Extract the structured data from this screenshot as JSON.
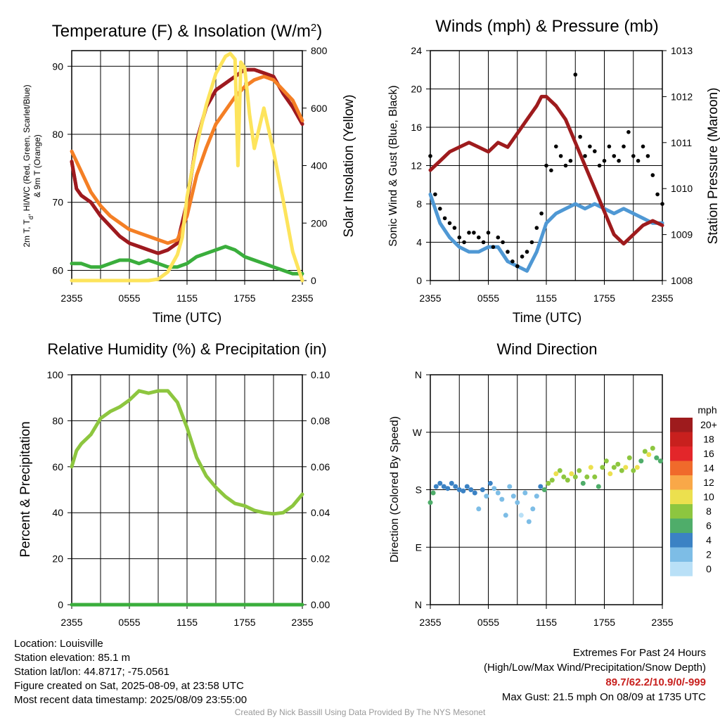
{
  "chart_data": [
    {
      "type": "line",
      "title": "Temperature (F) & Insolation (W/m",
      "title_sup": "2",
      "title_end": ")",
      "xlabel": "Time (UTC)",
      "ylabel_left_line1": "2m T, T",
      "ylabel_left_sub": "d",
      "ylabel_left_line1_end": ", HI/WC (Red, Green, Scarlet/Blue)",
      "ylabel_left_line2": "& 9m T (Orange)",
      "ylabel_right": "Solar Insolation (Yellow)",
      "x_ticks": [
        "2355",
        "0555",
        "1155",
        "1755",
        "2355"
      ],
      "ylim_left": [
        58.5,
        92.3
      ],
      "ylim_right": [
        0,
        800
      ],
      "y_ticks_left": [
        "60",
        "70",
        "80",
        "90"
      ],
      "y_ticks_right": [
        "0",
        "200",
        "400",
        "600",
        "800"
      ],
      "grid": true,
      "series": [
        {
          "color": "#e3262a",
          "x_hours": [
            0,
            0.5,
            1,
            2,
            3,
            4,
            5,
            6,
            7,
            8,
            9,
            10,
            11,
            12,
            13,
            14,
            15,
            16,
            16.5,
            17,
            18,
            19,
            20,
            21,
            22,
            23,
            24
          ],
          "values": [
            76,
            72,
            71,
            70,
            68,
            66.5,
            65,
            64,
            63.5,
            63,
            62.5,
            63,
            64,
            70,
            79,
            84,
            86.5,
            87.5,
            88,
            88.5,
            89.5,
            89.5,
            89,
            88.5,
            86,
            84,
            81.5
          ]
        },
        {
          "color": "#9d1a1f",
          "x_hours": [
            0,
            0.5,
            1,
            2,
            3,
            4,
            5,
            6,
            7,
            8,
            9,
            10,
            11,
            12,
            13,
            14,
            15,
            16,
            16.5,
            17,
            18,
            19,
            20,
            21,
            22,
            23,
            24
          ],
          "values": [
            76,
            72,
            71,
            70,
            68,
            66.5,
            65,
            64,
            63.5,
            63,
            62.5,
            63,
            64,
            70,
            79,
            84,
            86.5,
            87.5,
            88,
            88.5,
            89.5,
            89.5,
            89,
            88.5,
            86,
            84,
            81.5
          ]
        },
        {
          "color": "#f47f25",
          "x_hours": [
            0,
            1,
            2,
            3,
            4,
            5,
            6,
            7,
            8,
            9,
            10,
            11,
            12,
            13,
            14,
            15,
            16,
            17,
            18,
            19,
            20,
            21,
            22,
            23,
            24
          ],
          "values": [
            77.5,
            74.5,
            71.5,
            69.5,
            68,
            67,
            66,
            65.5,
            65,
            64.5,
            64,
            64.5,
            68,
            74,
            78,
            81.5,
            83.5,
            85.5,
            87,
            88,
            88.5,
            88,
            86.5,
            85,
            82
          ]
        },
        {
          "color": "#3aae3c",
          "x_hours": [
            0,
            1,
            2,
            3,
            4,
            5,
            6,
            7,
            8,
            9,
            10,
            11,
            12,
            13,
            14,
            15,
            16,
            17,
            18,
            19,
            20,
            21,
            22,
            23,
            24
          ],
          "values": [
            61,
            61,
            60.5,
            60.5,
            61,
            61.5,
            61.5,
            61,
            61.5,
            61,
            60.5,
            60.5,
            61,
            62,
            62.5,
            63,
            63.5,
            63,
            62,
            61.5,
            61,
            60.5,
            60,
            59.5,
            59.5
          ]
        },
        {
          "axis": "right",
          "color": "#fde45c",
          "x_hours": [
            0,
            8,
            9,
            10,
            11,
            11.5,
            12,
            13,
            14,
            15,
            16,
            16.5,
            17,
            17.3,
            17.6,
            18,
            18.5,
            19,
            20,
            21,
            22,
            23,
            24
          ],
          "values": [
            0,
            0,
            5,
            30,
            90,
            150,
            290,
            470,
            610,
            720,
            780,
            790,
            770,
            400,
            760,
            740,
            580,
            460,
            600,
            450,
            280,
            100,
            0
          ]
        }
      ]
    },
    {
      "type": "line",
      "title": "Winds (mph) & Pressure (mb)",
      "xlabel": "Time (UTC)",
      "ylabel_left": "Sonic Wind & Gust (Blue, Black)",
      "ylabel_right": "Station Pressure (Maroon)",
      "x_ticks": [
        "2355",
        "0555",
        "1155",
        "1755",
        "2355"
      ],
      "ylim_left": [
        0,
        24
      ],
      "ylim_right": [
        1008,
        1013
      ],
      "y_ticks_left": [
        "0",
        "4",
        "8",
        "12",
        "16",
        "20",
        "24"
      ],
      "y_ticks_right": [
        "1008",
        "1009",
        "1010",
        "1011",
        "1012",
        "1013"
      ],
      "grid": true,
      "series": [
        {
          "color": "#4f98d4",
          "x_hours": [
            0,
            1,
            2,
            3,
            4,
            5,
            6,
            7,
            8,
            9,
            10,
            11,
            12,
            13,
            14,
            15,
            16,
            17,
            18,
            19,
            20,
            21,
            22,
            23,
            24
          ],
          "values": [
            9,
            6,
            4.5,
            3.5,
            3,
            3,
            3.5,
            3.5,
            2,
            1.5,
            1,
            3,
            6,
            7,
            7.5,
            8,
            7.5,
            8,
            7.5,
            7,
            7.5,
            7,
            6.5,
            6,
            6
          ]
        },
        {
          "color": "#9e1b1d",
          "axis": "right",
          "x_hours": [
            0,
            1,
            2,
            3,
            4,
            5,
            6,
            7,
            8,
            9,
            10,
            11,
            11.5,
            12,
            13,
            14,
            15,
            16,
            17,
            18,
            19,
            20,
            21,
            22,
            23,
            24
          ],
          "values": [
            1010.4,
            1010.6,
            1010.8,
            1010.9,
            1011.0,
            1010.9,
            1010.8,
            1011.0,
            1010.9,
            1011.2,
            1011.5,
            1011.8,
            1012.0,
            1012.0,
            1011.8,
            1011.5,
            1011.0,
            1010.5,
            1010.0,
            1009.5,
            1009.0,
            1008.8,
            1009.0,
            1009.2,
            1009.3,
            1009.2
          ]
        }
      ],
      "gust_points": {
        "color": "#000000",
        "x_hours": [
          0,
          0.5,
          1,
          1.5,
          2,
          2.5,
          3,
          3.5,
          4,
          4.5,
          5,
          5.5,
          6,
          6.5,
          7,
          7.5,
          8,
          8.5,
          9,
          9.5,
          10,
          10.5,
          11,
          11.5,
          12,
          12.5,
          13,
          13.5,
          14,
          14.5,
          15,
          15.5,
          16,
          16.5,
          17,
          17.5,
          18,
          18.5,
          19,
          19.5,
          20,
          20.5,
          21,
          21.5,
          22,
          22.5,
          23,
          23.5,
          24
        ],
        "values": [
          13,
          9,
          7.5,
          6.5,
          6,
          5.5,
          4.5,
          4,
          5,
          5,
          4.5,
          4,
          5,
          3.5,
          4.5,
          4,
          3,
          2,
          1.5,
          2.5,
          3,
          4,
          5.5,
          7,
          12,
          11.5,
          14,
          13,
          12,
          12.5,
          21.5,
          15,
          13,
          14,
          13.5,
          12,
          12.5,
          14,
          13,
          12.5,
          14,
          15.5,
          13,
          12.5,
          14,
          13,
          11,
          9,
          8
        ]
      }
    },
    {
      "type": "line",
      "title": "Relative Humidity (%) & Precipitation (in)",
      "ylabel_left": "Percent & Precipitation",
      "x_ticks": [
        "2355",
        "0555",
        "1155",
        "1755",
        "2355"
      ],
      "ylim_left": [
        0,
        100
      ],
      "ylim_right": [
        0,
        0.1
      ],
      "y_ticks_left": [
        "0",
        "20",
        "40",
        "60",
        "80",
        "100"
      ],
      "y_ticks_right": [
        "0.00",
        "0.02",
        "0.04",
        "0.06",
        "0.08",
        "0.10"
      ],
      "grid": true,
      "series": [
        {
          "color": "#8dc63f",
          "x_hours": [
            0,
            0.5,
            1,
            2,
            3,
            4,
            5,
            6,
            7,
            8,
            9,
            10,
            11,
            12,
            13,
            14,
            15,
            16,
            17,
            18,
            19,
            20,
            21,
            22,
            23,
            24
          ],
          "values": [
            60,
            67,
            70,
            74,
            81,
            84,
            86,
            89,
            93,
            92,
            93,
            93,
            88,
            77,
            64,
            56,
            51,
            47,
            44,
            43,
            41,
            40,
            39.5,
            40,
            43,
            48
          ]
        },
        {
          "color": "#3aae3c",
          "axis": "right",
          "x_hours": [
            0,
            24
          ],
          "values": [
            0,
            0
          ]
        }
      ]
    },
    {
      "type": "scatter",
      "title": "Wind Direction",
      "ylabel_left": "Direction (Colored By Speed)",
      "x_ticks": [
        "2355",
        "0555",
        "1155",
        "1755",
        "2355"
      ],
      "y_ticks_left": [
        "N",
        "E",
        "S",
        "W",
        "N"
      ],
      "ylim_left": [
        0,
        360
      ],
      "grid": true,
      "colorbar": {
        "label": "mph",
        "ticks": [
          "20+",
          "18",
          "16",
          "14",
          "12",
          "10",
          "8",
          "6",
          "4",
          "2",
          "0"
        ],
        "colors": [
          "#9e1b1d",
          "#c8201e",
          "#e3262a",
          "#f06a2b",
          "#f9a848",
          "#ece04e",
          "#8dc63f",
          "#4fad6a",
          "#3b82c4",
          "#7dbde6",
          "#b9e0f7"
        ]
      },
      "points": {
        "x_hours": [
          0,
          0.3,
          0.6,
          1,
          1.4,
          1.8,
          2.2,
          2.6,
          3,
          3.4,
          3.8,
          4.2,
          4.6,
          5,
          5.4,
          5.8,
          6.2,
          6.6,
          7,
          7.4,
          7.8,
          8.2,
          8.6,
          9,
          9.4,
          9.8,
          10.2,
          10.6,
          11,
          11.4,
          11.8,
          12.2,
          12.6,
          13,
          13.4,
          13.8,
          14.2,
          14.6,
          15,
          15.4,
          15.8,
          16.2,
          16.6,
          17,
          17.4,
          17.8,
          18.2,
          18.6,
          19,
          19.4,
          19.8,
          20.2,
          20.6,
          21,
          21.4,
          21.8,
          22.2,
          22.6,
          23,
          23.4,
          23.8
        ],
        "values": [
          160,
          175,
          185,
          190,
          185,
          182,
          190,
          185,
          180,
          178,
          185,
          180,
          175,
          150,
          180,
          170,
          190,
          182,
          175,
          165,
          140,
          185,
          170,
          160,
          140,
          175,
          130,
          150,
          170,
          185,
          180,
          190,
          195,
          205,
          210,
          200,
          195,
          205,
          200,
          210,
          190,
          200,
          215,
          200,
          185,
          215,
          225,
          205,
          215,
          220,
          210,
          215,
          230,
          210,
          215,
          225,
          240,
          235,
          245,
          230,
          225
        ],
        "speeds": [
          6,
          6,
          4,
          4,
          4,
          4,
          3,
          4,
          4,
          4,
          3,
          4,
          3,
          2,
          3,
          2,
          3,
          2,
          2,
          1,
          1,
          2,
          1,
          1,
          0,
          1,
          1,
          1,
          2,
          4,
          6,
          8,
          8,
          9,
          8,
          7,
          8,
          10,
          8,
          7,
          5,
          8,
          9,
          8,
          6,
          8,
          7,
          9,
          8,
          7,
          8,
          9,
          7,
          8,
          9,
          6,
          7,
          9,
          8,
          6,
          5
        ]
      }
    }
  ],
  "footer": {
    "location": "Location: Louisville",
    "elevation": "Station elevation: 85.1 m",
    "latlon": "Station lat/lon: 44.8717; -75.0561",
    "created": "Figure created on Sat, 2025-08-09, at 23:58 UTC",
    "recent": "Most recent data timestamp: 2025/08/09 23:55:00",
    "extremes_title": "Extremes For Past 24 Hours",
    "extremes_sub": "(High/Low/Max Wind/Precipitation/Snow Depth)",
    "extremes_values": "89.7/62.2/10.9/0/-999",
    "max_gust": "Max Gust: 21.5 mph On 08/09 at 1735 UTC",
    "credit": "Created By Nick Bassill Using Data Provided By The NYS Mesonet"
  }
}
